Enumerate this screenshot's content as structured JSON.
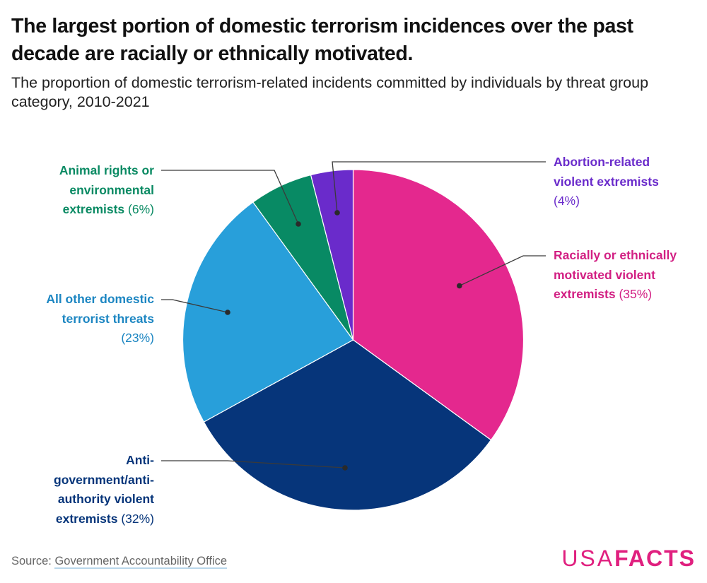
{
  "header": {
    "title": "The largest portion of domestic terrorism incidences over the past decade are racially or ethnically motivated.",
    "subtitle": "The proportion of domestic terrorism-related incidents committed by individuals by threat group category, 2010-2021"
  },
  "chart_data": {
    "type": "pie",
    "title": "The largest portion of domestic terrorism incidences over the past decade are racially or ethnically motivated.",
    "subtitle": "The proportion of domestic terrorism-related incidents committed by individuals by threat group category, 2010-2021",
    "start": "12 o'clock, clockwise",
    "unit": "%",
    "slices": [
      {
        "label": "Racially or ethnically motivated violent extremists",
        "value": 35,
        "pct_label": "(35%)",
        "color": "#e4288e"
      },
      {
        "label": "Anti-government/anti-authority violent extremists",
        "value": 32,
        "pct_label": "(32%)",
        "color": "#06357a"
      },
      {
        "label": "All other domestic terrorist threats",
        "value": 23,
        "pct_label": "(23%)",
        "color": "#289fda"
      },
      {
        "label": "Animal rights or environmental extremists",
        "value": 6,
        "pct_label": "(6%)",
        "color": "#088a64"
      },
      {
        "label": "Abortion-related violent extremists",
        "value": 4,
        "pct_label": "(4%)",
        "color": "#6a2bcb"
      }
    ]
  },
  "labels": {
    "racial": {
      "line1": "Racially or ethnically",
      "line2": "motivated violent",
      "line3": "extremists",
      "pct": "(35%)",
      "color": "#d21f83"
    },
    "antigov": {
      "line1": "Anti-",
      "line2": "government/anti-",
      "line3": "authority violent",
      "line4": "extremists",
      "pct": "(32%)",
      "color": "#06357a"
    },
    "other": {
      "line1": "All other domestic",
      "line2": "terrorist threats",
      "pct": "(23%)",
      "color": "#1c86c2"
    },
    "animal": {
      "line1": "Animal rights or",
      "line2": "environmental",
      "line3": "extremists",
      "pct": "(6%)",
      "color": "#0a8a63"
    },
    "abortion": {
      "line1": "Abortion-related",
      "line2": "violent extremists",
      "pct": "(4%)",
      "color": "#6a2bcb"
    }
  },
  "footer": {
    "source_prefix": "Source: ",
    "source_link": "Government Accountability Office",
    "logo_thin": "USA",
    "logo_bold": "FACTS"
  }
}
